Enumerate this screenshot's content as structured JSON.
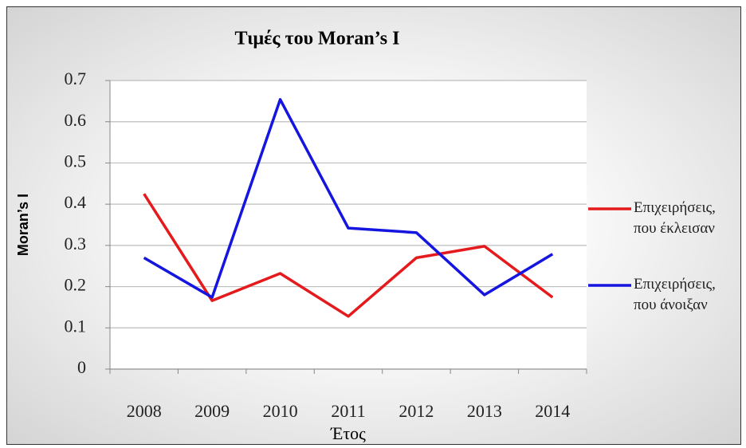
{
  "chart_data": {
    "type": "line",
    "title": "Τιμές του Moran’s I",
    "x_label": "Έτος",
    "y_label": "Moran’s I",
    "categories": [
      "2008",
      "2009",
      "2010",
      "2011",
      "2012",
      "2013",
      "2014"
    ],
    "series": [
      {
        "name": "Επιχειρήσεις, που έκλεισαν",
        "color": "#e41a1c",
        "values": [
          0.425,
          0.166,
          0.232,
          0.128,
          0.27,
          0.298,
          0.174
        ]
      },
      {
        "name": "Επιχειρήσεις, που άνοιξαν",
        "color": "#1515e0",
        "values": [
          0.27,
          0.174,
          0.654,
          0.342,
          0.331,
          0.18,
          0.279
        ]
      }
    ],
    "ylim": [
      0,
      0.7
    ],
    "yticks": [
      0,
      0.1,
      0.2,
      0.3,
      0.4,
      0.5,
      0.6,
      0.7
    ],
    "grid": true,
    "legend": "right"
  }
}
